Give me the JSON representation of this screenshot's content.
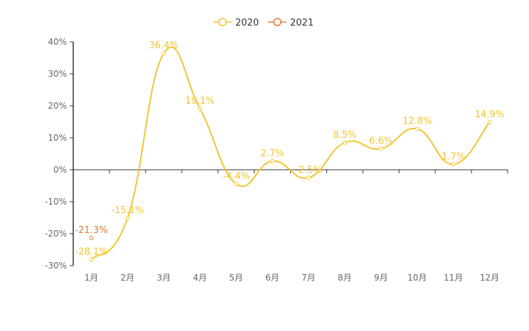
{
  "chart_data": {
    "type": "line",
    "title": "",
    "xlabel": "",
    "ylabel": "",
    "categories": [
      "1月",
      "2月",
      "3月",
      "4月",
      "5月",
      "6月",
      "7月",
      "8月",
      "9月",
      "10月",
      "11月",
      "12月"
    ],
    "ylim": [
      -30,
      40
    ],
    "yticks": [
      -30,
      -20,
      -10,
      0,
      10,
      20,
      30,
      40
    ],
    "y_tick_suffix": "%",
    "grid": false,
    "legend_position": "top-center",
    "series": [
      {
        "name": "2020",
        "color": "#f4c430",
        "smooth": true,
        "values": [
          -28.1,
          -15.1,
          36.4,
          19.1,
          -4.4,
          2.7,
          -2.5,
          8.5,
          6.6,
          12.8,
          1.7,
          14.9
        ],
        "labels": [
          "-28.1%",
          "-15.1%",
          "36.4%",
          "19.1%",
          "-4.4%",
          "2.7%",
          "-2.5%",
          "8.5%",
          "6.6%",
          "12.8%",
          "1.7%",
          "14.9%"
        ]
      },
      {
        "name": "2021",
        "color": "#e07b39",
        "smooth": true,
        "values": [
          -21.3,
          null,
          null,
          null,
          null,
          null,
          null,
          null,
          null,
          null,
          null,
          null
        ],
        "labels": [
          "-21.3%",
          null,
          null,
          null,
          null,
          null,
          null,
          null,
          null,
          null,
          null,
          null
        ]
      }
    ]
  }
}
